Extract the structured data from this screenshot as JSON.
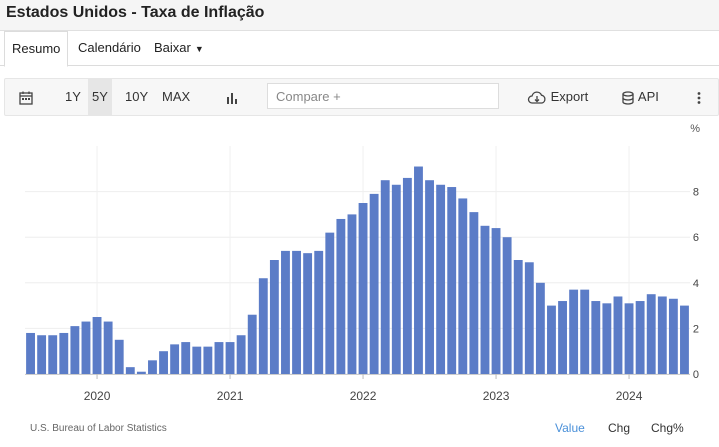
{
  "header": {
    "title": "Estados Unidos - Taxa de Inflação"
  },
  "tabs": [
    {
      "label": "Resumo"
    },
    {
      "label": "Calendário"
    },
    {
      "label": "Baixar"
    }
  ],
  "toolbar": {
    "ranges": [
      "1Y",
      "5Y",
      "10Y",
      "MAX"
    ],
    "selected_range": "5Y",
    "compare_placeholder": "Compare +",
    "export_label": "Export",
    "api_label": "API"
  },
  "colors": {
    "bar": "#5b7cc7",
    "accent_link": "#4a90d9"
  },
  "chart_data": {
    "type": "bar",
    "x_label_years": [
      "2020",
      "2021",
      "2022",
      "2023",
      "2024"
    ],
    "y_ticks": [
      0,
      2,
      4,
      6,
      8
    ],
    "y_unit": "%",
    "ylim": [
      0,
      10
    ],
    "grid": true,
    "x": [
      "2019-07",
      "2019-08",
      "2019-09",
      "2019-10",
      "2019-11",
      "2019-12",
      "2020-01",
      "2020-02",
      "2020-03",
      "2020-04",
      "2020-05",
      "2020-06",
      "2020-07",
      "2020-08",
      "2020-09",
      "2020-10",
      "2020-11",
      "2020-12",
      "2021-01",
      "2021-02",
      "2021-03",
      "2021-04",
      "2021-05",
      "2021-06",
      "2021-07",
      "2021-08",
      "2021-09",
      "2021-10",
      "2021-11",
      "2021-12",
      "2022-01",
      "2022-02",
      "2022-03",
      "2022-04",
      "2022-05",
      "2022-06",
      "2022-07",
      "2022-08",
      "2022-09",
      "2022-10",
      "2022-11",
      "2022-12",
      "2023-01",
      "2023-02",
      "2023-03",
      "2023-04",
      "2023-05",
      "2023-06",
      "2023-07",
      "2023-08",
      "2023-09",
      "2023-10",
      "2023-11",
      "2023-12",
      "2024-01",
      "2024-02",
      "2024-03",
      "2024-04",
      "2024-05",
      "2024-06"
    ],
    "values": [
      1.8,
      1.7,
      1.7,
      1.8,
      2.1,
      2.3,
      2.5,
      2.3,
      1.5,
      0.3,
      0.1,
      0.6,
      1.0,
      1.3,
      1.4,
      1.2,
      1.2,
      1.4,
      1.4,
      1.7,
      2.6,
      4.2,
      5.0,
      5.4,
      5.4,
      5.3,
      5.4,
      6.2,
      6.8,
      7.0,
      7.5,
      7.9,
      8.5,
      8.3,
      8.6,
      9.1,
      8.5,
      8.3,
      8.2,
      7.7,
      7.1,
      6.5,
      6.4,
      6.0,
      5.0,
      4.9,
      4.0,
      3.0,
      3.2,
      3.7,
      3.7,
      3.2,
      3.1,
      3.4,
      3.1,
      3.2,
      3.5,
      3.4,
      3.3,
      3.0
    ],
    "source": "U.S. Bureau of Labor Statistics"
  },
  "footer": {
    "links": [
      "Value",
      "Chg",
      "Chg%"
    ],
    "active_link": "Value"
  }
}
